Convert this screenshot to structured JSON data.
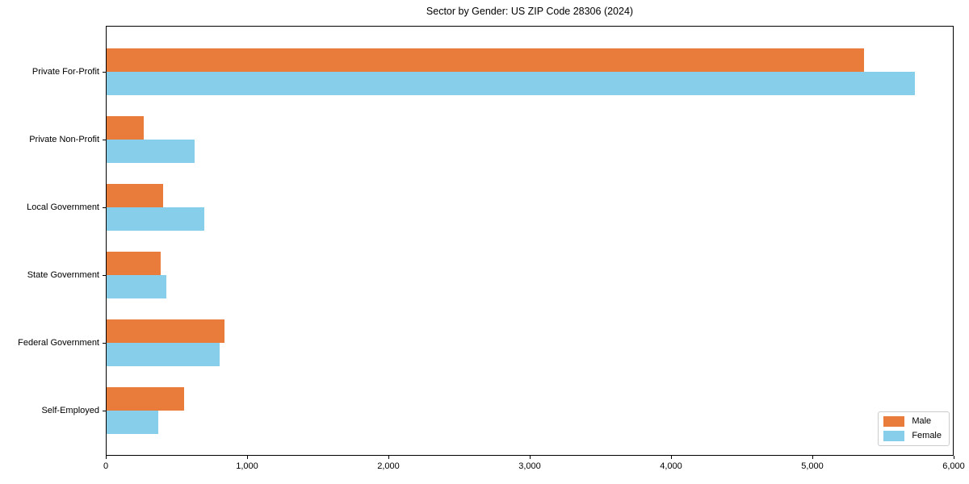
{
  "title": "Sector by Gender: US ZIP Code 28306 (2024)",
  "colors": {
    "male": "#e97b3b",
    "female": "#87ceeb",
    "spine": "#000000",
    "background": "#ffffff",
    "legend_border": "#cccccc"
  },
  "chart_data": {
    "type": "bar",
    "orientation": "horizontal",
    "title": "Sector by Gender: US ZIP Code 28306 (2024)",
    "categories": [
      "Private For-Profit",
      "Private Non-Profit",
      "Local Government",
      "State Government",
      "Federal Government",
      "Self-Employed"
    ],
    "series": [
      {
        "name": "Male",
        "color": "#e97b3b",
        "values": [
          5360,
          265,
          400,
          385,
          835,
          550
        ]
      },
      {
        "name": "Female",
        "color": "#87ceeb",
        "values": [
          5720,
          620,
          690,
          420,
          800,
          365
        ]
      }
    ],
    "xlabel": "",
    "ylabel": "",
    "xlim": [
      0,
      6000
    ],
    "xticks": [
      0,
      1000,
      2000,
      3000,
      4000,
      5000,
      6000
    ],
    "xtick_labels": [
      "0",
      "1,000",
      "2,000",
      "3,000",
      "4,000",
      "5,000",
      "6,000"
    ],
    "grid": false,
    "legend": {
      "position": "lower right",
      "entries": [
        "Male",
        "Female"
      ]
    }
  }
}
